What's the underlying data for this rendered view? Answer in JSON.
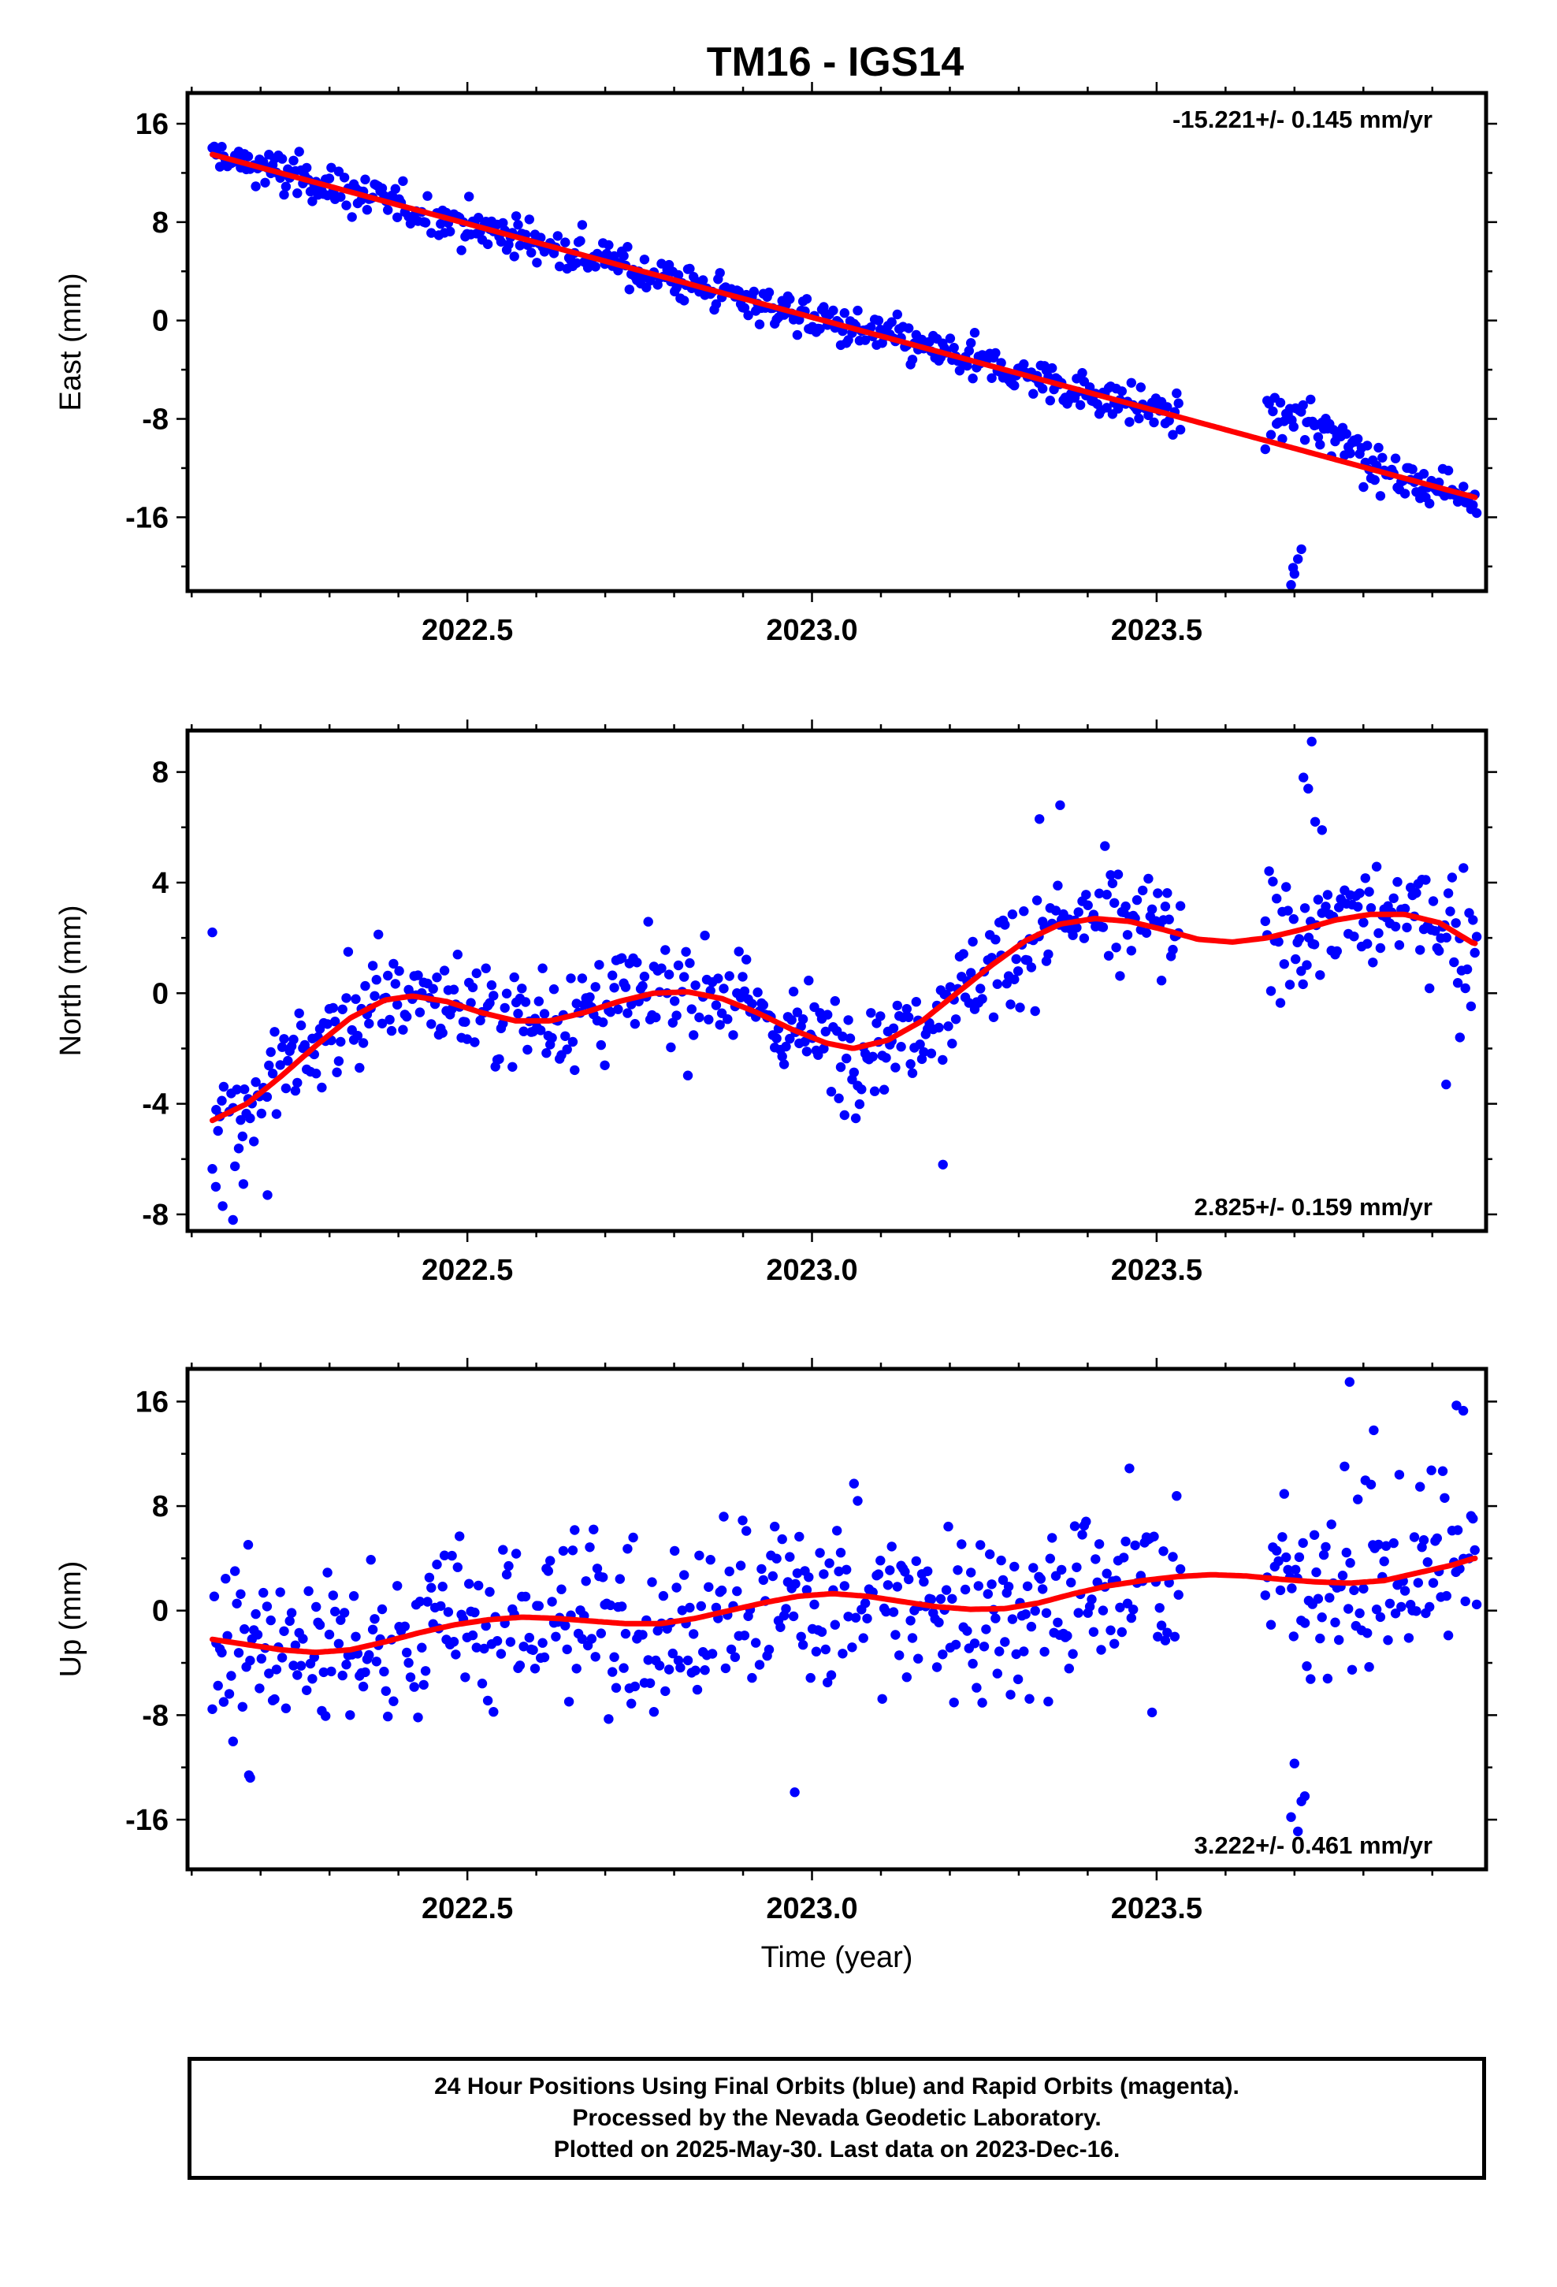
{
  "title": "TM16 - IGS14",
  "colors": {
    "final_orbits": "#0000ff",
    "model": "#ff0000",
    "frame": "#000000"
  },
  "footer": {
    "line1": "24 Hour Positions Using Final Orbits (blue) and Rapid Orbits (magenta).",
    "line2": "Processed by the Nevada Geodetic Laboratory.",
    "line3": "Plotted on 2025-May-30. Last data on 2023-Dec-16."
  },
  "chart_data": [
    {
      "type": "scatter",
      "panel": "east",
      "title": "TM16 - IGS14",
      "ylabel": "East (mm)",
      "xlabel": "",
      "xlim": [
        2022.094,
        2023.978
      ],
      "ylim": [
        -22.0,
        18.5
      ],
      "xticks": [
        2022.5,
        2023.0,
        2023.5
      ],
      "xtick_labels": [
        "2022.5",
        "2023.0",
        "2023.5"
      ],
      "yticks": [
        16,
        8,
        0,
        -8,
        -16
      ],
      "ytick_labels": [
        "16",
        "8",
        "0",
        "-8",
        "-16"
      ],
      "annotation": "-15.221+/- 0.145 mm/yr",
      "annotation_position": "top-right",
      "trend": {
        "x0": 2022.13,
        "y0": 13.5,
        "rate": -15.221
      },
      "seasonal": [],
      "noise": 1.15,
      "outliers": [
        {
          "x": 2023.695,
          "y": -21.5
        },
        {
          "x": 2023.7,
          "y": -20.6
        },
        {
          "x": 2023.705,
          "y": -19.4
        },
        {
          "x": 2023.71,
          "y": -18.6
        },
        {
          "x": 2023.698,
          "y": -20.1
        }
      ],
      "offsets": [
        {
          "start": 2023.66,
          "end": 2023.8,
          "dy": 2.2
        }
      ]
    },
    {
      "type": "scatter",
      "panel": "north",
      "ylabel": "North (mm)",
      "xlabel": "",
      "xlim": [
        2022.094,
        2023.978
      ],
      "ylim": [
        -8.6,
        9.5
      ],
      "xticks": [
        2022.5,
        2023.0,
        2023.5
      ],
      "xtick_labels": [
        "2022.5",
        "2023.0",
        "2023.5"
      ],
      "yticks": [
        8,
        4,
        0,
        -4,
        -8
      ],
      "ytick_labels": [
        "8",
        "4",
        "0",
        "-4",
        "-8"
      ],
      "annotation": "2.825+/- 0.159 mm/yr",
      "annotation_position": "bottom-right",
      "model_points": [
        [
          2022.13,
          -4.6
        ],
        [
          2022.18,
          -4.0
        ],
        [
          2022.23,
          -3.0
        ],
        [
          2022.28,
          -1.9
        ],
        [
          2022.33,
          -0.9
        ],
        [
          2022.38,
          -0.25
        ],
        [
          2022.42,
          -0.1
        ],
        [
          2022.47,
          -0.3
        ],
        [
          2022.52,
          -0.7
        ],
        [
          2022.57,
          -1.0
        ],
        [
          2022.62,
          -1.0
        ],
        [
          2022.67,
          -0.7
        ],
        [
          2022.72,
          -0.3
        ],
        [
          2022.77,
          0.0
        ],
        [
          2022.82,
          0.05
        ],
        [
          2022.87,
          -0.2
        ],
        [
          2022.92,
          -0.7
        ],
        [
          2022.97,
          -1.3
        ],
        [
          2023.02,
          -1.8
        ],
        [
          2023.06,
          -2.0
        ],
        [
          2023.11,
          -1.7
        ],
        [
          2023.16,
          -1.0
        ],
        [
          2023.21,
          0.0
        ],
        [
          2023.26,
          1.0
        ],
        [
          2023.31,
          1.9
        ],
        [
          2023.36,
          2.5
        ],
        [
          2023.41,
          2.7
        ],
        [
          2023.46,
          2.6
        ],
        [
          2023.51,
          2.3
        ],
        [
          2023.56,
          1.95
        ],
        [
          2023.61,
          1.85
        ],
        [
          2023.66,
          2.0
        ],
        [
          2023.71,
          2.3
        ],
        [
          2023.76,
          2.65
        ],
        [
          2023.81,
          2.85
        ],
        [
          2023.86,
          2.85
        ],
        [
          2023.91,
          2.55
        ],
        [
          2023.96,
          1.8
        ]
      ],
      "noise": 1.35,
      "outliers": [
        {
          "x": 2022.13,
          "y": 2.2
        },
        {
          "x": 2022.135,
          "y": -7.0
        },
        {
          "x": 2022.145,
          "y": -7.7
        },
        {
          "x": 2022.16,
          "y": -8.2
        },
        {
          "x": 2022.175,
          "y": -6.9
        },
        {
          "x": 2022.21,
          "y": -7.3
        },
        {
          "x": 2023.19,
          "y": -6.2
        },
        {
          "x": 2023.713,
          "y": 7.8
        },
        {
          "x": 2023.72,
          "y": 7.4
        },
        {
          "x": 2023.725,
          "y": 9.1
        },
        {
          "x": 2023.73,
          "y": 6.2
        },
        {
          "x": 2023.74,
          "y": 5.9
        },
        {
          "x": 2023.36,
          "y": 6.8
        },
        {
          "x": 2023.33,
          "y": 6.3
        },
        {
          "x": 2023.94,
          "y": -1.6
        },
        {
          "x": 2023.92,
          "y": -3.3
        }
      ]
    },
    {
      "type": "scatter",
      "panel": "up",
      "ylabel": "Up (mm)",
      "xlabel": "Time (year)",
      "xlim": [
        2022.094,
        2023.978
      ],
      "ylim": [
        -19.8,
        18.5
      ],
      "xticks": [
        2022.5,
        2023.0,
        2023.5
      ],
      "xtick_labels": [
        "2022.5",
        "2023.0",
        "2023.5"
      ],
      "yticks": [
        16,
        8,
        0,
        -8,
        -16
      ],
      "ytick_labels": [
        "16",
        "8",
        "0",
        "-8",
        "-16"
      ],
      "annotation": "3.222+/- 0.461 mm/yr",
      "annotation_position": "bottom-right",
      "model_points": [
        [
          2022.13,
          -2.2
        ],
        [
          2022.18,
          -2.6
        ],
        [
          2022.23,
          -3.0
        ],
        [
          2022.28,
          -3.2
        ],
        [
          2022.33,
          -3.0
        ],
        [
          2022.38,
          -2.4
        ],
        [
          2022.43,
          -1.7
        ],
        [
          2022.48,
          -1.1
        ],
        [
          2022.53,
          -0.7
        ],
        [
          2022.58,
          -0.5
        ],
        [
          2022.63,
          -0.6
        ],
        [
          2022.68,
          -0.8
        ],
        [
          2022.73,
          -1.0
        ],
        [
          2022.78,
          -1.0
        ],
        [
          2022.83,
          -0.6
        ],
        [
          2022.88,
          0.0
        ],
        [
          2022.93,
          0.6
        ],
        [
          2022.98,
          1.1
        ],
        [
          2023.03,
          1.3
        ],
        [
          2023.08,
          1.1
        ],
        [
          2023.13,
          0.7
        ],
        [
          2023.18,
          0.3
        ],
        [
          2023.23,
          0.1
        ],
        [
          2023.28,
          0.15
        ],
        [
          2023.33,
          0.6
        ],
        [
          2023.38,
          1.3
        ],
        [
          2023.43,
          1.9
        ],
        [
          2023.48,
          2.3
        ],
        [
          2023.53,
          2.6
        ],
        [
          2023.58,
          2.75
        ],
        [
          2023.63,
          2.65
        ],
        [
          2023.68,
          2.4
        ],
        [
          2023.73,
          2.2
        ],
        [
          2023.78,
          2.1
        ],
        [
          2023.83,
          2.3
        ],
        [
          2023.88,
          2.9
        ],
        [
          2023.93,
          3.5
        ],
        [
          2023.96,
          4.0
        ]
      ],
      "noise": 4.8,
      "outliers": [
        {
          "x": 2022.183,
          "y": -12.6
        },
        {
          "x": 2022.185,
          "y": -12.8
        },
        {
          "x": 2022.975,
          "y": -13.9
        },
        {
          "x": 2023.695,
          "y": -15.8
        },
        {
          "x": 2023.705,
          "y": -16.9
        },
        {
          "x": 2023.71,
          "y": -14.6
        },
        {
          "x": 2023.715,
          "y": -14.2
        },
        {
          "x": 2023.7,
          "y": -11.7
        },
        {
          "x": 2023.78,
          "y": 17.5
        },
        {
          "x": 2023.935,
          "y": 15.7
        },
        {
          "x": 2023.945,
          "y": 15.3
        },
        {
          "x": 2023.815,
          "y": 13.8
        }
      ]
    }
  ]
}
